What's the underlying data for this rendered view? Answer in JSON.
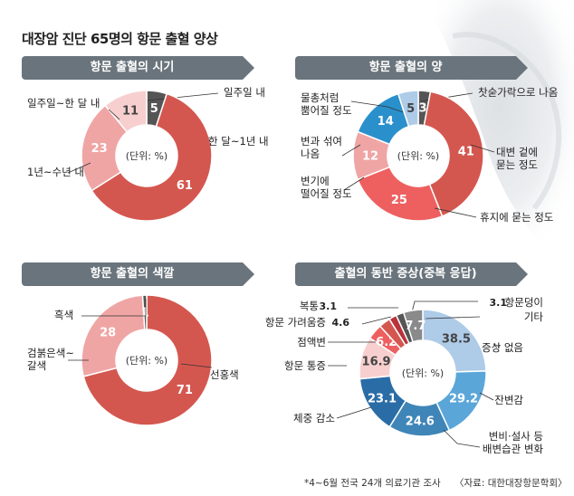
{
  "title": "대장암 진단 65명의 항문 출혈 양상",
  "footnote": "*4~6월 전국 24개 의료기관 조사",
  "source": "〈자료: 대한대장항문학회〉",
  "unit_label": "(단위: %)",
  "colors": {
    "deep_red": "#d4574f",
    "pink": "#f0a5a5",
    "light_pink": "#f7cfcf",
    "blue": "#2a90cc",
    "dark_gray": "#555555",
    "gray": "#8a8a8a",
    "crimson": "#b8333c",
    "coral": "#ee6060",
    "light_blue": "#aecbe8",
    "medium_blue": "#5ba6d9",
    "steel_blue": "#3f85b8",
    "navy_blue": "#2a6da6",
    "header_bg": "#6a747c"
  },
  "chart_data": [
    {
      "type": "pie",
      "title": "항문 출혈의 시기",
      "slices": [
        {
          "label": "일주일 내",
          "value": 5,
          "color": "#555555"
        },
        {
          "label": "한 달~1년 내",
          "value": 61,
          "color": "#d4574f"
        },
        {
          "label": "1년~수년 내",
          "value": 23,
          "color": "#f0a5a5"
        },
        {
          "label": "일주일~한 달 내",
          "value": 11,
          "color": "#f7cfcf"
        }
      ]
    },
    {
      "type": "pie",
      "title": "항문 출혈의 양",
      "slices": [
        {
          "label": "찻숟가락으로 나옴",
          "value": 3,
          "color": "#555555"
        },
        {
          "label": "대변 겉에 묻는 정도",
          "value": 41,
          "color": "#d4574f"
        },
        {
          "label": "휴지에 묻는 정도",
          "value": 25,
          "color": "#ee6060"
        },
        {
          "label": "변기에 떨어질 정도",
          "value": 12,
          "color": "#f0a5a5"
        },
        {
          "label": "변과 섞여 나옴",
          "value": 14,
          "color": "#2a90cc"
        },
        {
          "label": "물총처럼 뿜어질 정도",
          "value": 5,
          "color": "#aecbe8"
        }
      ]
    },
    {
      "type": "pie",
      "title": "항문 출혈의 색깔",
      "slices": [
        {
          "label": "선홍색",
          "value": 71,
          "color": "#d4574f"
        },
        {
          "label": "검붉은색~갈색",
          "value": 28,
          "color": "#f0a5a5"
        },
        {
          "label": "흑색",
          "value": 1,
          "color": "#555555"
        }
      ]
    },
    {
      "type": "pie",
      "title": "출혈의 동반 증상(중복 응답)",
      "slices": [
        {
          "label": "증상 없음",
          "value": 38.5,
          "color": "#aecbe8"
        },
        {
          "label": "잔변감",
          "value": 29.2,
          "color": "#5ba6d9"
        },
        {
          "label": "변비·설사 등 배변습관 변화",
          "value": 24.6,
          "color": "#3f85b8"
        },
        {
          "label": "체중 감소",
          "value": 23.1,
          "color": "#2a6da6"
        },
        {
          "label": "항문 통증",
          "value": 16.9,
          "color": "#f7cfcf"
        },
        {
          "label": "점액변",
          "value": 6.2,
          "color": "#ee6060"
        },
        {
          "label": "항문 가려움증",
          "value": 4.6,
          "color": "#d4574f"
        },
        {
          "label": "복통",
          "value": 3.1,
          "color": "#b8333c"
        },
        {
          "label": "항문덩이",
          "value": 3.1,
          "color": "#555555"
        },
        {
          "label": "기타",
          "value": 7.7,
          "color": "#8a8a8a"
        }
      ]
    }
  ]
}
